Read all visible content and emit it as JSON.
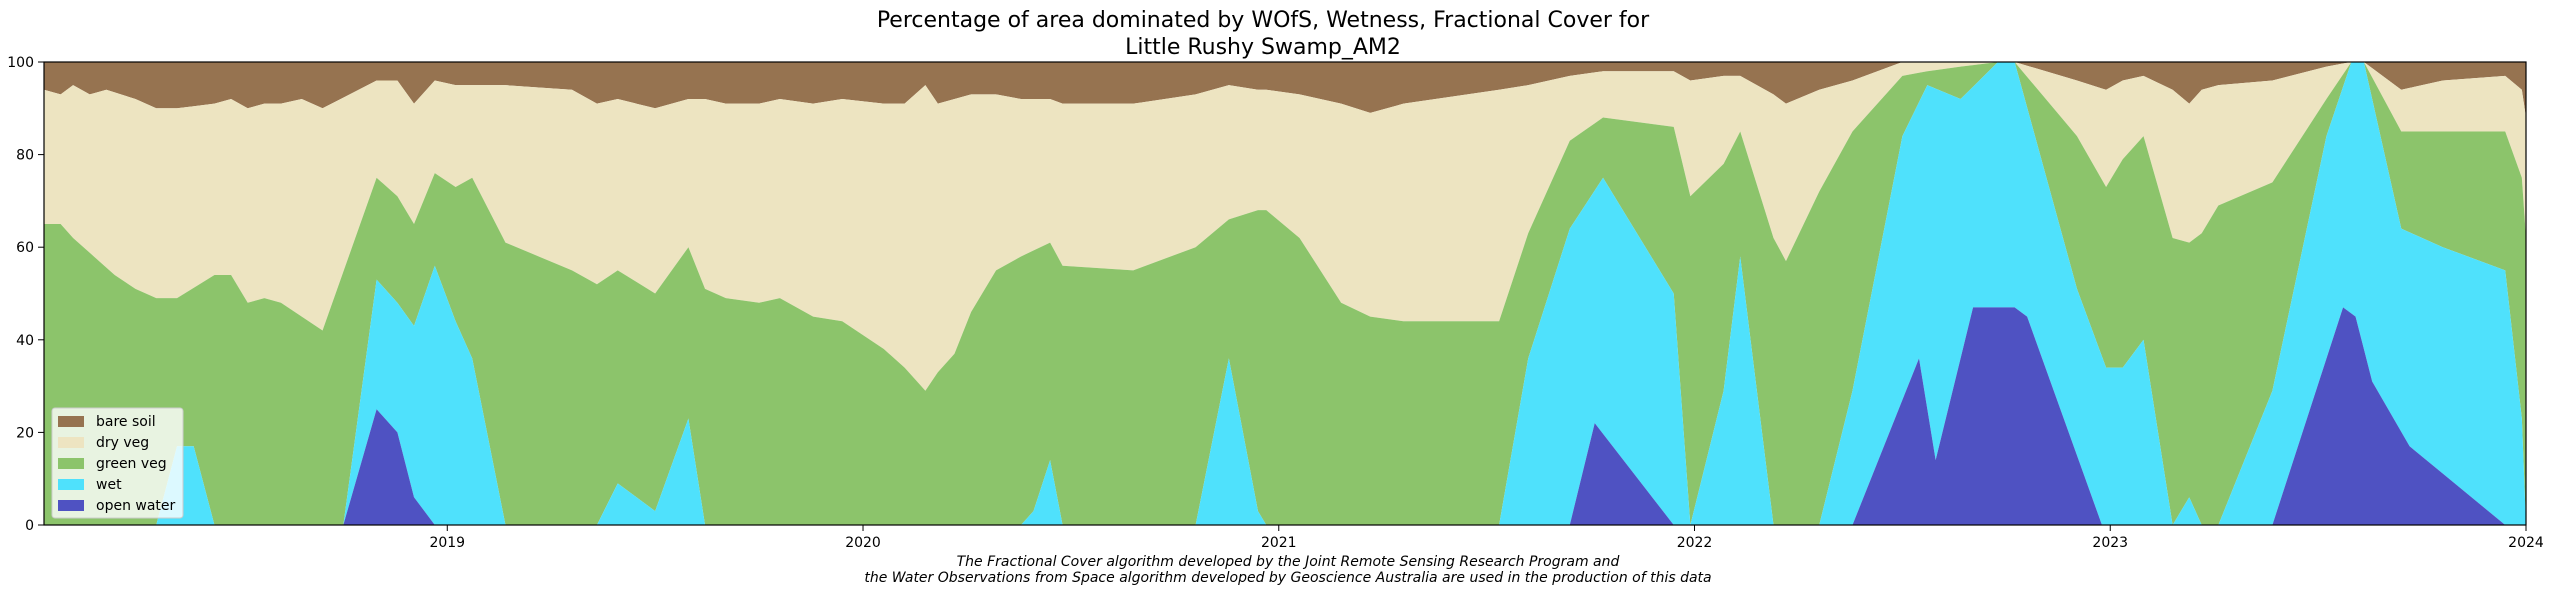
{
  "chart_data": {
    "type": "area",
    "stacked": true,
    "title_line1": "Percentage of area dominated by WOfS, Wetness, Fractional Cover for",
    "title_line2": "Little Rushy Swamp_AM2",
    "xlabel": "",
    "ylabel": "",
    "xlim": [
      2018.03,
      2024.0
    ],
    "ylim": [
      0,
      100
    ],
    "x_ticks": [
      {
        "value": 2019,
        "label": "2019"
      },
      {
        "value": 2020,
        "label": "2020"
      },
      {
        "value": 2021,
        "label": "2021"
      },
      {
        "value": 2022,
        "label": "2022"
      },
      {
        "value": 2023,
        "label": "2023"
      },
      {
        "value": 2024,
        "label": "2024"
      }
    ],
    "y_ticks": [
      0,
      20,
      40,
      60,
      80,
      100
    ],
    "grid": false,
    "legend_position": "bottom-left",
    "series_order_bottom_to_top": [
      "open water",
      "wet",
      "green veg",
      "dry veg",
      "bare soil"
    ],
    "colors": {
      "open water": "#4f52c2",
      "wet": "#4fe1fc",
      "green veg": "#8cc46b",
      "dry veg": "#ede4c1",
      "bare soil": "#967350"
    },
    "legend": [
      "bare soil",
      "dry veg",
      "green veg",
      "wet",
      "open water"
    ],
    "footnote_line1": "The Fractional Cover algorithm developed by the Joint Remote Sensing Research Program and",
    "footnote_line2": "the Water Observations from Space algorithm developed by Geoscience Australia are used in the production of this data",
    "series_cumulative_tops": {
      "open_water": [
        [
          2018.03,
          0
        ],
        [
          2018.75,
          0
        ],
        [
          2018.83,
          25
        ],
        [
          2018.88,
          20
        ],
        [
          2018.92,
          6
        ],
        [
          2018.97,
          0
        ],
        [
          2021.7,
          0
        ],
        [
          2021.76,
          22
        ],
        [
          2021.95,
          0
        ],
        [
          2022.38,
          0
        ],
        [
          2022.54,
          36
        ],
        [
          2022.58,
          14
        ],
        [
          2022.67,
          47
        ],
        [
          2022.77,
          47
        ],
        [
          2022.8,
          45
        ],
        [
          2022.98,
          0
        ],
        [
          2023.39,
          0
        ],
        [
          2023.56,
          47
        ],
        [
          2023.59,
          45
        ],
        [
          2023.63,
          31
        ],
        [
          2023.72,
          17
        ],
        [
          2023.95,
          0
        ],
        [
          2024.0,
          0
        ]
      ],
      "wet": [
        [
          2018.03,
          0
        ],
        [
          2018.3,
          0
        ],
        [
          2018.35,
          17
        ],
        [
          2018.39,
          17
        ],
        [
          2018.44,
          0
        ],
        [
          2018.75,
          0
        ],
        [
          2018.83,
          53
        ],
        [
          2018.88,
          48
        ],
        [
          2018.92,
          43
        ],
        [
          2018.97,
          56
        ],
        [
          2019.02,
          44
        ],
        [
          2019.06,
          36
        ],
        [
          2019.14,
          0
        ],
        [
          2019.36,
          0
        ],
        [
          2019.41,
          9
        ],
        [
          2019.5,
          3
        ],
        [
          2019.58,
          23
        ],
        [
          2019.62,
          0
        ],
        [
          2020.38,
          0
        ],
        [
          2020.41,
          3
        ],
        [
          2020.45,
          14
        ],
        [
          2020.48,
          0
        ],
        [
          2020.8,
          0
        ],
        [
          2020.88,
          36
        ],
        [
          2020.95,
          3
        ],
        [
          2020.97,
          0
        ],
        [
          2021.53,
          0
        ],
        [
          2021.6,
          36
        ],
        [
          2021.7,
          64
        ],
        [
          2021.78,
          75
        ],
        [
          2021.95,
          50
        ],
        [
          2021.99,
          0
        ],
        [
          2022.07,
          29
        ],
        [
          2022.11,
          58
        ],
        [
          2022.19,
          0
        ],
        [
          2022.3,
          0
        ],
        [
          2022.38,
          29
        ],
        [
          2022.5,
          84
        ],
        [
          2022.56,
          95
        ],
        [
          2022.64,
          92
        ],
        [
          2022.73,
          100
        ],
        [
          2022.77,
          100
        ],
        [
          2022.92,
          51
        ],
        [
          2022.99,
          34
        ],
        [
          2023.03,
          34
        ],
        [
          2023.08,
          40
        ],
        [
          2023.15,
          0
        ],
        [
          2023.19,
          6
        ],
        [
          2023.22,
          0
        ],
        [
          2023.26,
          0
        ],
        [
          2023.39,
          29
        ],
        [
          2023.52,
          84
        ],
        [
          2023.58,
          100
        ],
        [
          2023.61,
          100
        ],
        [
          2023.7,
          64
        ],
        [
          2023.8,
          60
        ],
        [
          2023.95,
          55
        ],
        [
          2023.99,
          23
        ],
        [
          2024.0,
          0
        ]
      ],
      "green_veg": [
        [
          2018.03,
          65
        ],
        [
          2018.07,
          65
        ],
        [
          2018.1,
          62
        ],
        [
          2018.15,
          58
        ],
        [
          2018.2,
          54
        ],
        [
          2018.25,
          51
        ],
        [
          2018.3,
          49
        ],
        [
          2018.35,
          49
        ],
        [
          2018.44,
          54
        ],
        [
          2018.48,
          54
        ],
        [
          2018.52,
          48
        ],
        [
          2018.56,
          49
        ],
        [
          2018.6,
          48
        ],
        [
          2018.65,
          45
        ],
        [
          2018.7,
          42
        ],
        [
          2018.83,
          75
        ],
        [
          2018.88,
          71
        ],
        [
          2018.92,
          65
        ],
        [
          2018.97,
          76
        ],
        [
          2019.02,
          73
        ],
        [
          2019.06,
          75
        ],
        [
          2019.14,
          61
        ],
        [
          2019.22,
          58
        ],
        [
          2019.3,
          55
        ],
        [
          2019.36,
          52
        ],
        [
          2019.41,
          55
        ],
        [
          2019.5,
          50
        ],
        [
          2019.58,
          60
        ],
        [
          2019.62,
          51
        ],
        [
          2019.67,
          49
        ],
        [
          2019.75,
          48
        ],
        [
          2019.8,
          49
        ],
        [
          2019.88,
          45
        ],
        [
          2019.95,
          44
        ],
        [
          2020.05,
          38
        ],
        [
          2020.1,
          34
        ],
        [
          2020.15,
          29
        ],
        [
          2020.18,
          33
        ],
        [
          2020.22,
          37
        ],
        [
          2020.26,
          46
        ],
        [
          2020.32,
          55
        ],
        [
          2020.38,
          58
        ],
        [
          2020.45,
          61
        ],
        [
          2020.48,
          56
        ],
        [
          2020.65,
          55
        ],
        [
          2020.8,
          60
        ],
        [
          2020.88,
          66
        ],
        [
          2020.95,
          68
        ],
        [
          2020.97,
          68
        ],
        [
          2021.05,
          62
        ],
        [
          2021.15,
          48
        ],
        [
          2021.22,
          45
        ],
        [
          2021.3,
          44
        ],
        [
          2021.53,
          44
        ],
        [
          2021.6,
          63
        ],
        [
          2021.7,
          83
        ],
        [
          2021.78,
          88
        ],
        [
          2021.95,
          86
        ],
        [
          2021.99,
          71
        ],
        [
          2022.07,
          78
        ],
        [
          2022.11,
          85
        ],
        [
          2022.19,
          62
        ],
        [
          2022.22,
          57
        ],
        [
          2022.3,
          72
        ],
        [
          2022.38,
          85
        ],
        [
          2022.5,
          97
        ],
        [
          2022.56,
          98
        ],
        [
          2022.64,
          99
        ],
        [
          2022.73,
          100
        ],
        [
          2022.77,
          100
        ],
        [
          2022.92,
          84
        ],
        [
          2022.99,
          73
        ],
        [
          2023.03,
          79
        ],
        [
          2023.08,
          84
        ],
        [
          2023.15,
          62
        ],
        [
          2023.19,
          61
        ],
        [
          2023.22,
          63
        ],
        [
          2023.26,
          69
        ],
        [
          2023.39,
          74
        ],
        [
          2023.52,
          92
        ],
        [
          2023.58,
          100
        ],
        [
          2023.61,
          100
        ],
        [
          2023.7,
          85
        ],
        [
          2023.8,
          85
        ],
        [
          2023.95,
          85
        ],
        [
          2023.99,
          75
        ],
        [
          2024.0,
          62
        ]
      ],
      "dry_veg": [
        [
          2018.03,
          94
        ],
        [
          2018.07,
          93
        ],
        [
          2018.1,
          95
        ],
        [
          2018.14,
          93
        ],
        [
          2018.18,
          94
        ],
        [
          2018.25,
          92
        ],
        [
          2018.3,
          90
        ],
        [
          2018.35,
          90
        ],
        [
          2018.44,
          91
        ],
        [
          2018.48,
          92
        ],
        [
          2018.52,
          90
        ],
        [
          2018.56,
          91
        ],
        [
          2018.6,
          91
        ],
        [
          2018.65,
          92
        ],
        [
          2018.7,
          90
        ],
        [
          2018.83,
          96
        ],
        [
          2018.88,
          96
        ],
        [
          2018.92,
          91
        ],
        [
          2018.97,
          96
        ],
        [
          2019.02,
          95
        ],
        [
          2019.14,
          95
        ],
        [
          2019.3,
          94
        ],
        [
          2019.36,
          91
        ],
        [
          2019.41,
          92
        ],
        [
          2019.5,
          90
        ],
        [
          2019.58,
          92
        ],
        [
          2019.62,
          92
        ],
        [
          2019.67,
          91
        ],
        [
          2019.75,
          91
        ],
        [
          2019.8,
          92
        ],
        [
          2019.88,
          91
        ],
        [
          2019.95,
          92
        ],
        [
          2020.05,
          91
        ],
        [
          2020.1,
          91
        ],
        [
          2020.15,
          95
        ],
        [
          2020.18,
          91
        ],
        [
          2020.22,
          92
        ],
        [
          2020.26,
          93
        ],
        [
          2020.32,
          93
        ],
        [
          2020.38,
          92
        ],
        [
          2020.45,
          92
        ],
        [
          2020.48,
          91
        ],
        [
          2020.65,
          91
        ],
        [
          2020.8,
          93
        ],
        [
          2020.88,
          95
        ],
        [
          2020.95,
          94
        ],
        [
          2020.97,
          94
        ],
        [
          2021.05,
          93
        ],
        [
          2021.15,
          91
        ],
        [
          2021.22,
          89
        ],
        [
          2021.3,
          91
        ],
        [
          2021.53,
          94
        ],
        [
          2021.6,
          95
        ],
        [
          2021.7,
          97
        ],
        [
          2021.78,
          98
        ],
        [
          2021.95,
          98
        ],
        [
          2021.99,
          96
        ],
        [
          2022.07,
          97
        ],
        [
          2022.11,
          97
        ],
        [
          2022.19,
          93
        ],
        [
          2022.22,
          91
        ],
        [
          2022.3,
          94
        ],
        [
          2022.38,
          96
        ],
        [
          2022.5,
          100
        ],
        [
          2022.56,
          100
        ],
        [
          2022.73,
          100
        ],
        [
          2022.77,
          100
        ],
        [
          2022.92,
          96
        ],
        [
          2022.99,
          94
        ],
        [
          2023.03,
          96
        ],
        [
          2023.08,
          97
        ],
        [
          2023.15,
          94
        ],
        [
          2023.19,
          91
        ],
        [
          2023.22,
          94
        ],
        [
          2023.26,
          95
        ],
        [
          2023.39,
          96
        ],
        [
          2023.52,
          99
        ],
        [
          2023.58,
          100
        ],
        [
          2023.61,
          100
        ],
        [
          2023.7,
          94
        ],
        [
          2023.8,
          96
        ],
        [
          2023.95,
          97
        ],
        [
          2023.99,
          94
        ],
        [
          2024.0,
          88
        ]
      ],
      "bare_soil": [
        [
          2018.03,
          100
        ],
        [
          2024.0,
          100
        ]
      ]
    }
  }
}
